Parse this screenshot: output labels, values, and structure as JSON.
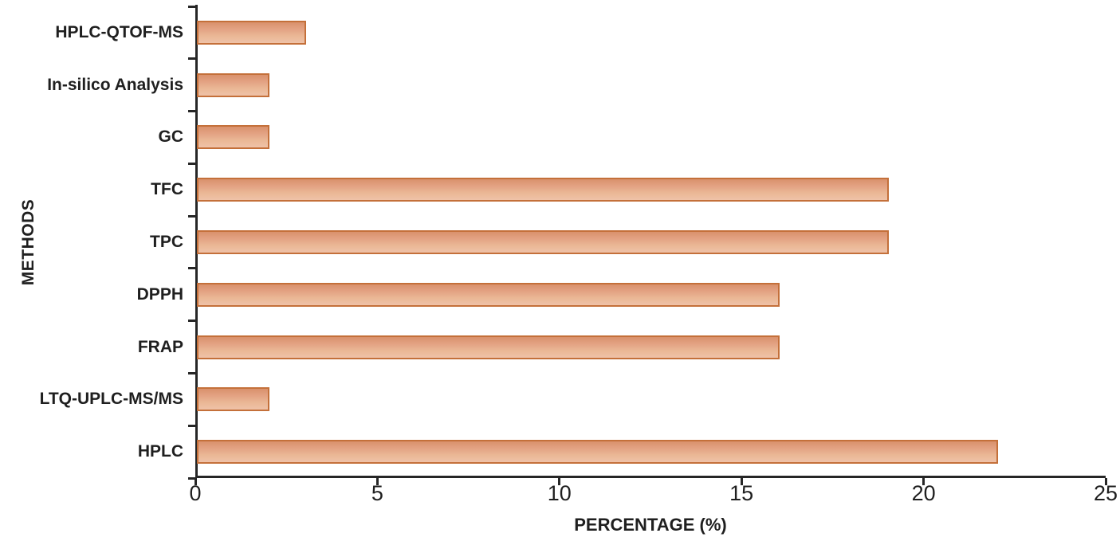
{
  "chart_data": {
    "type": "bar",
    "orientation": "horizontal",
    "title": "",
    "xlabel": "PERCENTAGE (%)",
    "ylabel": "METHODS",
    "categories": [
      "HPLC-QTOF-MS",
      "In-silico Analysis",
      "GC",
      "TFC",
      "TPC",
      "DPPH",
      "FRAP",
      "LTQ-UPLC-MS/MS",
      "HPLC"
    ],
    "values": [
      3,
      2,
      2,
      19,
      19,
      16,
      16,
      2,
      22
    ],
    "xlim": [
      0,
      25
    ],
    "xticks": [
      0,
      5,
      10,
      15,
      20,
      25
    ],
    "grid": false,
    "legend": false,
    "colors": {
      "bar_fill_top": "#d9916c",
      "bar_fill_bottom": "#efc2a8",
      "bar_border": "#c4703a",
      "axis": "#262626",
      "text": "#1f1f1f",
      "background": "#ffffff"
    }
  }
}
